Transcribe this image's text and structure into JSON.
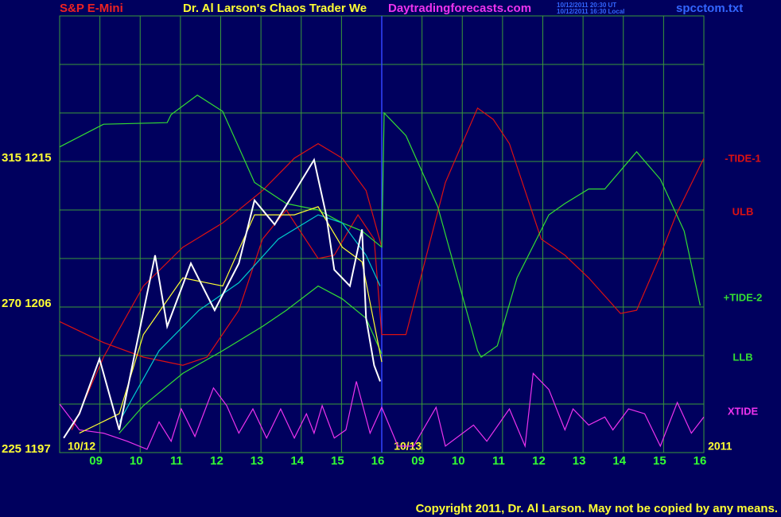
{
  "chart_data": {
    "type": "line",
    "header": {
      "symbol": "S&P E-Mini",
      "title": "Dr. Al Larson's Chaos Trader We",
      "site": "Daytradingforecasts.com",
      "time_ut": "10/12/2011 20:30 UT",
      "time_local": "10/12/2011 16:30 Local",
      "file": "spcctom.txt"
    },
    "copyright": "Copyright 2011, Dr. Al Larson. May not be copied by any means.",
    "annotations": [
      {
        "text": "10/12",
        "x": 0.2
      },
      {
        "text": "10/13",
        "x": 8.3
      },
      {
        "text": "2011",
        "x": 16.1
      }
    ],
    "xlim": [
      0,
      16
    ],
    "xgrid": [
      0,
      1,
      2,
      3,
      4,
      5,
      6,
      7,
      8,
      9,
      10,
      11,
      12,
      13,
      14,
      15,
      16
    ],
    "xticks": [
      {
        "value": 1,
        "label": "09"
      },
      {
        "value": 2,
        "label": "10"
      },
      {
        "value": 3,
        "label": "11"
      },
      {
        "value": 4,
        "label": "12"
      },
      {
        "value": 5,
        "label": "13"
      },
      {
        "value": 6,
        "label": "14"
      },
      {
        "value": 7,
        "label": "15"
      },
      {
        "value": 8,
        "label": "16"
      },
      {
        "value": 9,
        "label": "09"
      },
      {
        "value": 10,
        "label": "10"
      },
      {
        "value": 11,
        "label": "11"
      },
      {
        "value": 12,
        "label": "12"
      },
      {
        "value": 13,
        "label": "13"
      },
      {
        "value": 14,
        "label": "14"
      },
      {
        "value": 15,
        "label": "15"
      },
      {
        "value": 16,
        "label": "16"
      }
    ],
    "ylim": [
      1197,
      1224
    ],
    "ygrid": [
      1197,
      1200,
      1203,
      1206,
      1209,
      1212,
      1215,
      1218,
      1221,
      1224
    ],
    "yticks": [
      {
        "value": 1197,
        "label": "225 1197"
      },
      {
        "value": 1206,
        "label": "270 1206"
      },
      {
        "value": 1215,
        "label": "315 1215"
      }
    ],
    "grid": true,
    "grid_color": "#3a9a3a",
    "series": [
      {
        "name": "-TIDE-1",
        "color": "#dd1111",
        "x": [
          0,
          1.09,
          2.08,
          3.06,
          3.66,
          4.45,
          5.04,
          5.63,
          6.42,
          6.82,
          7.41,
          7.81,
          8.0,
          8.6,
          9.58,
          10.38,
          10.77,
          11.17,
          11.96,
          12.55,
          13.14,
          13.93,
          14.33,
          14.92,
          15.31,
          16.0
        ],
        "values": [
          1205.1,
          1203.8,
          1202.9,
          1202.4,
          1202.9,
          1205.8,
          1210.2,
          1212.0,
          1209.0,
          1209.2,
          1211.7,
          1210.2,
          1204.3,
          1204.3,
          1213.7,
          1218.3,
          1217.6,
          1216.1,
          1210.2,
          1209.2,
          1207.8,
          1205.6,
          1205.8,
          1209.2,
          1211.7,
          1215.2
        ]
      },
      {
        "name": "ULB",
        "color": "#dd1111",
        "x": [
          0.3,
          1.09,
          2.08,
          3.06,
          4.05,
          5.04,
          5.83,
          6.42,
          7.02,
          7.61,
          8.0
        ],
        "values": [
          1198.4,
          1202.9,
          1207.3,
          1209.7,
          1211.2,
          1213.2,
          1215.2,
          1216.1,
          1215.2,
          1213.2,
          1209.7
        ]
      },
      {
        "name": "+TIDE-2",
        "color": "#33dd33",
        "x": [
          0,
          1.09,
          2.67,
          2.77,
          3.42,
          4.05,
          4.84,
          5.63,
          6.42,
          7.02,
          7.51,
          8.0,
          8.06,
          8.6,
          9.39,
          10.38,
          10.47,
          10.87,
          11.36,
          12.15,
          12.55,
          13.14,
          13.54,
          14.33,
          14.92,
          15.51,
          15.91
        ],
        "values": [
          1215.9,
          1217.3,
          1217.4,
          1217.9,
          1219.1,
          1218.1,
          1213.7,
          1212.4,
          1212.0,
          1211.2,
          1210.7,
          1209.7,
          1218.0,
          1216.6,
          1212.2,
          1203.3,
          1202.9,
          1203.6,
          1207.8,
          1211.7,
          1212.4,
          1213.3,
          1213.3,
          1215.6,
          1213.9,
          1210.7,
          1206.1
        ]
      },
      {
        "name": "LLB",
        "color": "#33dd33",
        "x": [
          1.48,
          2.08,
          3.06,
          4.05,
          5.04,
          5.63,
          6.42,
          7.02,
          7.61,
          8.0
        ],
        "values": [
          1198.2,
          1199.9,
          1201.9,
          1203.3,
          1204.8,
          1205.8,
          1207.3,
          1206.5,
          1205.3,
          1203.1
        ]
      },
      {
        "name": "XTIDE",
        "color": "#ee33ee",
        "x": [
          0,
          0.49,
          1.09,
          1.68,
          2.17,
          2.47,
          2.77,
          3.02,
          3.36,
          3.82,
          4.15,
          4.45,
          4.8,
          5.14,
          5.49,
          5.83,
          6.13,
          6.32,
          6.52,
          6.82,
          7.11,
          7.37,
          7.71,
          8.0,
          8.4,
          8.79,
          9.35,
          9.58,
          10.28,
          10.61,
          11.17,
          11.56,
          11.76,
          12.15,
          12.55,
          12.75,
          13.14,
          13.54,
          13.74,
          14.13,
          14.53,
          14.92,
          15.34,
          15.69,
          16.0
        ],
        "values": [
          1200.0,
          1198.4,
          1198.2,
          1197.7,
          1197.2,
          1198.9,
          1197.7,
          1199.7,
          1198.0,
          1201.0,
          1199.9,
          1198.2,
          1199.7,
          1197.9,
          1199.7,
          1197.9,
          1199.4,
          1198.2,
          1199.9,
          1197.9,
          1198.4,
          1201.4,
          1198.2,
          1199.8,
          1197.4,
          1197.4,
          1199.8,
          1197.4,
          1198.7,
          1197.7,
          1199.7,
          1197.4,
          1201.9,
          1200.9,
          1198.4,
          1199.7,
          1198.7,
          1199.2,
          1198.4,
          1199.7,
          1199.4,
          1197.4,
          1200.1,
          1198.2,
          1199.2
        ]
      },
      {
        "color": "#00cccc",
        "x": [
          1.48,
          2.47,
          3.46,
          4.45,
          5.43,
          6.42,
          7.02,
          7.61,
          7.96
        ],
        "values": [
          1198.9,
          1203.3,
          1205.8,
          1207.5,
          1210.2,
          1211.7,
          1211.2,
          1209.2,
          1207.3
        ]
      },
      {
        "color": "#ffff33",
        "x": [
          0.49,
          1.48,
          2.08,
          3.06,
          4.05,
          4.84,
          5.83,
          6.42,
          7.02,
          7.51,
          8.0
        ],
        "values": [
          1198.2,
          1199.4,
          1204.3,
          1207.8,
          1207.3,
          1211.7,
          1211.7,
          1212.2,
          1209.7,
          1208.8,
          1202.6
        ]
      },
      {
        "color": "#ffffff",
        "x": [
          0.1,
          0.49,
          0.99,
          1.48,
          1.88,
          2.37,
          2.67,
          3.26,
          3.85,
          4.45,
          4.84,
          5.34,
          5.83,
          6.32,
          6.62,
          6.82,
          7.21,
          7.51,
          7.61,
          7.81,
          7.96
        ],
        "values": [
          1197.9,
          1199.4,
          1202.8,
          1198.4,
          1203.3,
          1209.2,
          1204.8,
          1208.7,
          1205.8,
          1208.7,
          1212.6,
          1211.1,
          1213.1,
          1215.1,
          1211.7,
          1208.3,
          1207.3,
          1210.8,
          1205.3,
          1202.4,
          1201.4
        ]
      }
    ]
  }
}
